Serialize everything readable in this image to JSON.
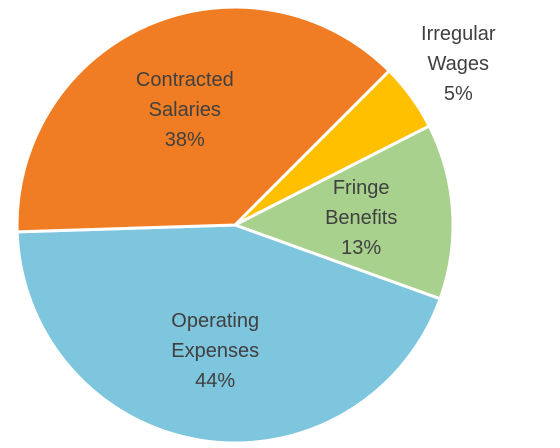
{
  "chart_data": {
    "type": "pie",
    "start_angle_deg": 45,
    "direction": "clockwise",
    "slices": [
      {
        "label_lines": [
          "Irregular",
          "Wages"
        ],
        "value": 5,
        "pct_label": "5%",
        "color": "#FFC000",
        "label_color": "#404040",
        "label_outside": true
      },
      {
        "label_lines": [
          "Fringe",
          "Benefits"
        ],
        "value": 13,
        "pct_label": "13%",
        "color": "#A9D18E",
        "label_color": "#404040",
        "label_outside": false
      },
      {
        "label_lines": [
          "Operating",
          "Expenses"
        ],
        "value": 44,
        "pct_label": "44%",
        "color": "#7EC5DE",
        "label_color": "#404040",
        "label_outside": false
      },
      {
        "label_lines": [
          "Contracted",
          "Salaries"
        ],
        "value": 38,
        "pct_label": "38%",
        "color": "#F07D23",
        "label_color": "#404040",
        "label_outside": false
      }
    ],
    "legend": "none"
  }
}
